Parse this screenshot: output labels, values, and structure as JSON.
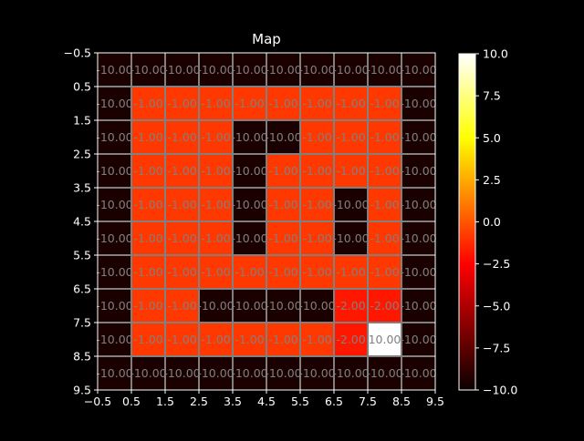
{
  "chart_data": {
    "type": "heatmap",
    "title": "Map",
    "colormap": "hot",
    "x_ticks": [
      "−0.5",
      "0.5",
      "1.5",
      "2.5",
      "3.5",
      "4.5",
      "5.5",
      "6.5",
      "7.5",
      "8.5",
      "9.5"
    ],
    "y_ticks": [
      "−0.5",
      "0.5",
      "1.5",
      "2.5",
      "3.5",
      "4.5",
      "5.5",
      "6.5",
      "7.5",
      "8.5",
      "9.5"
    ],
    "xlim": [
      -0.5,
      9.5
    ],
    "ylim": [
      9.5,
      -0.5
    ],
    "grid": true,
    "colorbar": {
      "range": [
        -10,
        10
      ],
      "ticks": [
        "−10.0",
        "−7.5",
        "−5.0",
        "−2.5",
        "0.0",
        "2.5",
        "5.0",
        "7.5",
        "10.0"
      ]
    },
    "values": [
      [
        -10,
        -10,
        -10,
        -10,
        -10,
        -10,
        -10,
        -10,
        -10,
        -10
      ],
      [
        -10,
        -1,
        -1,
        -1,
        -1,
        -1,
        -1,
        -1,
        -1,
        -10
      ],
      [
        -10,
        -1,
        -1,
        -1,
        -10,
        -10,
        -1,
        -1,
        -1,
        -10
      ],
      [
        -10,
        -1,
        -1,
        -1,
        -10,
        -1,
        -1,
        -1,
        -1,
        -10
      ],
      [
        -10,
        -1,
        -1,
        -1,
        -10,
        -1,
        -1,
        -10,
        -1,
        -10
      ],
      [
        -10,
        -1,
        -1,
        -1,
        -10,
        -1,
        -1,
        -10,
        -1,
        -10
      ],
      [
        -10,
        -1,
        -1,
        -1,
        -1,
        -1,
        -1,
        -1,
        -1,
        -10
      ],
      [
        -10,
        -1,
        -1,
        -10,
        -10,
        -10,
        -10,
        -2,
        -2,
        -10
      ],
      [
        -10,
        -1,
        -1,
        -1,
        -1,
        -1,
        -1,
        -2,
        10,
        -10
      ],
      [
        -10,
        -10,
        -10,
        -10,
        -10,
        -10,
        -10,
        -10,
        -10,
        -10
      ]
    ],
    "cell_labels": [
      [
        "-10.00",
        "-10.00",
        "-10.00",
        "-10.00",
        "-10.00",
        "-10.00",
        "-10.00",
        "-10.00",
        "-10.00",
        "-10.00"
      ],
      [
        "-10.00",
        "-1.00",
        "-1.00",
        "-1.00",
        "-1.00",
        "-1.00",
        "-1.00",
        "-1.00",
        "-1.00",
        "-10.00"
      ],
      [
        "-10.00",
        "-1.00",
        "-1.00",
        "-1.00",
        "-10.00",
        "-10.00",
        "-1.00",
        "-1.00",
        "-1.00",
        "-10.00"
      ],
      [
        "-10.00",
        "-1.00",
        "-1.00",
        "-1.00",
        "-10.00",
        "-1.00",
        "-1.00",
        "-1.00",
        "-1.00",
        "-10.00"
      ],
      [
        "-10.00",
        "-1.00",
        "-1.00",
        "-1.00",
        "-10.00",
        "-1.00",
        "-1.00",
        "-10.00",
        "-1.00",
        "-10.00"
      ],
      [
        "-10.00",
        "-1.00",
        "-1.00",
        "-1.00",
        "-10.00",
        "-1.00",
        "-1.00",
        "-10.00",
        "-1.00",
        "-10.00"
      ],
      [
        "-10.00",
        "-1.00",
        "-1.00",
        "-1.00",
        "-1.00",
        "-1.00",
        "-1.00",
        "-1.00",
        "-1.00",
        "-10.00"
      ],
      [
        "-10.00",
        "-1.00",
        "-1.00",
        "-10.00",
        "-10.00",
        "-10.00",
        "-10.00",
        "-2.00",
        "-2.00",
        "-10.00"
      ],
      [
        "-10.00",
        "-1.00",
        "-1.00",
        "-1.00",
        "-1.00",
        "-1.00",
        "-1.00",
        "-2.00",
        "10.00",
        "-10.00"
      ],
      [
        "-10.00",
        "-10.00",
        "-10.00",
        "-10.00",
        "-10.00",
        "-10.00",
        "-10.00",
        "-10.00",
        "-10.00",
        "-10.00"
      ]
    ],
    "colors": {
      "background": "#000000",
      "text": "#ffffff",
      "grid": "#808080",
      "cell_label": "#808080"
    }
  }
}
